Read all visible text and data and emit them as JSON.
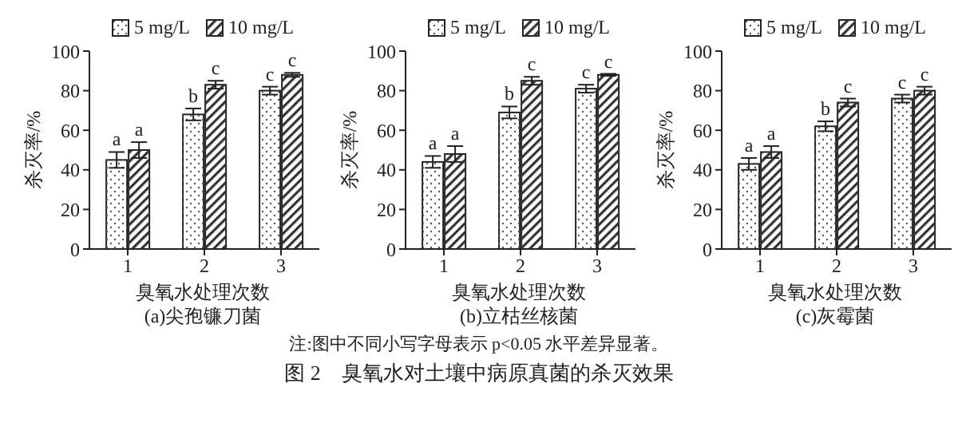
{
  "chart_data": [
    {
      "type": "bar",
      "subtitle": "(a)尖孢镰刀菌",
      "xlabel": "臭氧水处理次数",
      "ylabel": "杀灭率/%",
      "categories": [
        "1",
        "2",
        "3"
      ],
      "series": [
        {
          "name": "5 mg/L",
          "color": "#ffffff",
          "values": [
            45,
            68,
            80
          ],
          "errors": [
            4,
            3,
            2
          ],
          "value_labels": [
            "a",
            "b",
            "c"
          ]
        },
        {
          "name": "10 mg/L",
          "color": "#fefefe",
          "values": [
            50,
            83,
            88
          ],
          "errors": [
            4,
            2,
            1
          ],
          "value_labels": [
            "a",
            "c",
            "c"
          ]
        }
      ],
      "ylim": [
        0,
        100
      ],
      "yticks": [
        0,
        20,
        40,
        60,
        80,
        100
      ],
      "grid": false,
      "legend": "top",
      "annotations": [
        "注:图中不同小写字母表示 p<0.05 水平差异显著。",
        "图 2　臭氧水对土壤中病原真菌的杀灭效果"
      ]
    },
    {
      "type": "bar",
      "subtitle": "(b)立枯丝核菌",
      "xlabel": "臭氧水处理次数",
      "ylabel": "杀灭率/%",
      "categories": [
        "1",
        "2",
        "3"
      ],
      "series": [
        {
          "name": "5 mg/L",
          "color": "#ffffff",
          "values": [
            44,
            69,
            81
          ],
          "errors": [
            3,
            3,
            2
          ],
          "value_labels": [
            "a",
            "b",
            "c"
          ]
        },
        {
          "name": "10 mg/L",
          "color": "#fefefe",
          "values": [
            48,
            85,
            88
          ],
          "errors": [
            4,
            2,
            0.5
          ],
          "value_labels": [
            "a",
            "c",
            "c"
          ]
        }
      ],
      "ylim": [
        0,
        100
      ],
      "yticks": [
        0,
        20,
        40,
        60,
        80,
        100
      ],
      "grid": false,
      "legend": "top"
    },
    {
      "type": "bar",
      "subtitle": "(c)灰霉菌",
      "xlabel": "臭氧水处理次数",
      "ylabel": "杀灭率/%",
      "categories": [
        "1",
        "2",
        "3"
      ],
      "series": [
        {
          "name": "5 mg/L",
          "color": "#ffffff",
          "values": [
            43,
            62,
            76
          ],
          "errors": [
            3,
            2.5,
            2
          ],
          "value_labels": [
            "a",
            "b",
            "c"
          ]
        },
        {
          "name": "10 mg/L",
          "color": "#fefefe",
          "values": [
            49,
            74,
            80
          ],
          "errors": [
            3,
            2,
            2
          ],
          "value_labels": [
            "a",
            "c",
            "c"
          ]
        }
      ],
      "ylim": [
        0,
        100
      ],
      "yticks": [
        0,
        20,
        40,
        60,
        80,
        100
      ],
      "grid": false,
      "legend": "top"
    }
  ]
}
